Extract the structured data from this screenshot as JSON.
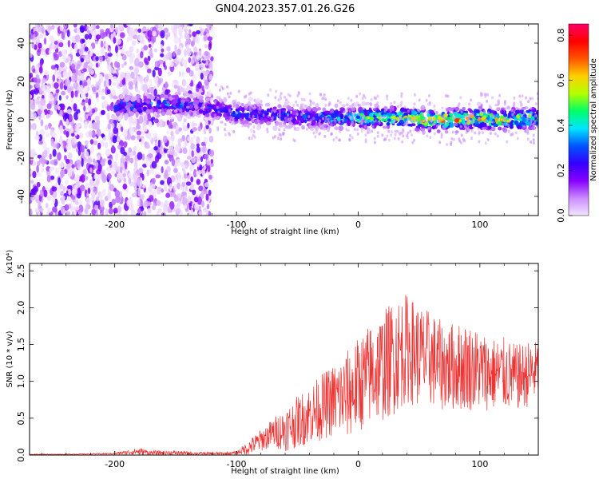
{
  "title": "GN04.2023.357.01.26.G26",
  "chart_data": [
    {
      "type": "heatmap",
      "xlabel": "Height of straight line (km)",
      "ylabel": "Frequency (Hz)",
      "xlim": [
        -270,
        148
      ],
      "ylim": [
        -50,
        50
      ],
      "x_ticks": [
        -200,
        -100,
        0,
        100
      ],
      "y_ticks": [
        -40,
        -20,
        0,
        20,
        40
      ],
      "colorbar": {
        "label": "Normalized spectral amplitude",
        "range": [
          0.0,
          0.85
        ],
        "ticks": [
          "0.0",
          "0.2",
          "0.4",
          "0.6",
          "0.8"
        ],
        "colors": [
          "#f3e6ff",
          "#c98bff",
          "#8800ff",
          "#3300ff",
          "#0055ff",
          "#00e6ff",
          "#00ff66",
          "#b3ff00",
          "#ffd000",
          "#ff5500",
          "#ff0000",
          "#ff0066"
        ]
      },
      "features": {
        "noise_region_x": [
          -270,
          -120
        ],
        "signal_track": {
          "x": [
            -200,
            -150,
            -120,
            -100,
            -80,
            -60,
            -40,
            -20,
            0,
            20,
            40,
            60,
            80,
            100,
            120,
            148
          ],
          "center_freq": [
            7,
            8,
            6,
            3,
            3,
            2,
            1,
            1,
            1,
            1,
            1,
            0,
            0,
            1,
            0,
            1
          ],
          "peak_amplitude": [
            0.35,
            0.35,
            0.3,
            0.3,
            0.3,
            0.3,
            0.3,
            0.4,
            0.5,
            0.55,
            0.6,
            0.75,
            0.7,
            0.65,
            0.6,
            0.5
          ]
        }
      }
    },
    {
      "type": "line",
      "xlabel": "Height of straight line (km)",
      "ylabel": "SNR (10 * v/v)",
      "y_multiplier": "(x10⁴)",
      "xlim": [
        -270,
        148
      ],
      "ylim": [
        0.0,
        2.6
      ],
      "x_ticks": [
        -200,
        -100,
        0,
        100
      ],
      "y_ticks": [
        "0.0",
        "0.5",
        "1.0",
        "1.5",
        "2.0",
        "2.5"
      ],
      "color": "#ee3333",
      "series": [
        {
          "x": [
            -270,
            -240,
            -200,
            -180,
            -170,
            -150,
            -130,
            -110,
            -100,
            -90,
            -80,
            -70,
            -60,
            -50,
            -40,
            -30,
            -20,
            -10,
            0,
            10,
            20,
            30,
            40,
            50,
            60,
            70,
            80,
            90,
            100,
            110,
            120,
            130,
            140,
            148
          ],
          "values": [
            0.01,
            0.01,
            0.02,
            0.05,
            0.03,
            0.03,
            0.02,
            0.02,
            0.03,
            0.1,
            0.2,
            0.3,
            0.35,
            0.45,
            0.55,
            0.65,
            0.75,
            0.8,
            0.95,
            1.1,
            1.2,
            1.35,
            1.45,
            1.35,
            1.3,
            1.2,
            1.2,
            1.2,
            1.15,
            1.1,
            1.1,
            1.05,
            1.1,
            1.15
          ],
          "amplitude": [
            0.005,
            0.005,
            0.01,
            0.05,
            0.03,
            0.03,
            0.02,
            0.02,
            0.02,
            0.1,
            0.15,
            0.2,
            0.3,
            0.35,
            0.4,
            0.45,
            0.5,
            0.6,
            0.65,
            0.7,
            0.75,
            0.8,
            0.75,
            0.7,
            0.65,
            0.6,
            0.6,
            0.6,
            0.55,
            0.5,
            0.5,
            0.45,
            0.45,
            0.4
          ]
        }
      ]
    }
  ]
}
